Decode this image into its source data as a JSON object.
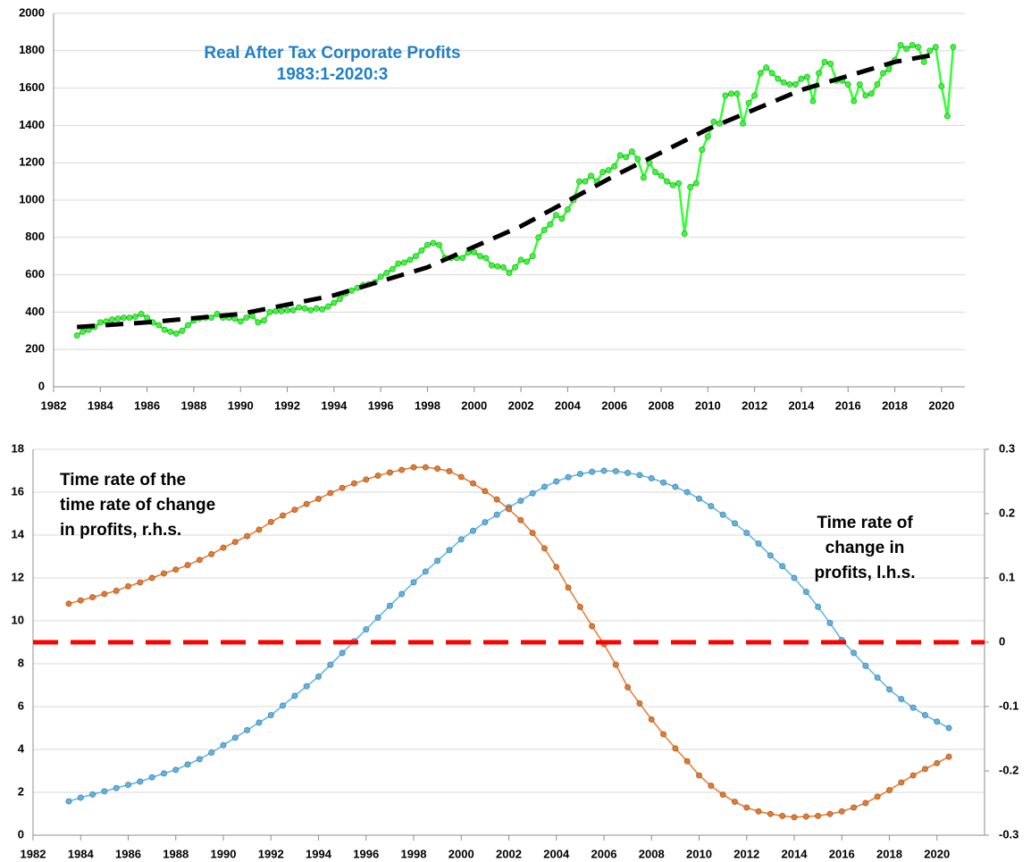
{
  "chart_data": [
    {
      "type": "line",
      "title": [
        "Real After Tax Corporate Profits",
        "1983:1-2020:3"
      ],
      "title_color": "#1f7fc8",
      "xlim": [
        1982,
        2021
      ],
      "xticks": [
        1982,
        1984,
        1986,
        1988,
        1990,
        1992,
        1994,
        1996,
        1998,
        2000,
        2002,
        2004,
        2006,
        2008,
        2010,
        2012,
        2014,
        2016,
        2018,
        2020
      ],
      "ylim": [
        0,
        2000
      ],
      "yticks": [
        0,
        200,
        400,
        600,
        800,
        1000,
        1200,
        1400,
        1600,
        1800,
        2000
      ],
      "grid": true,
      "series": [
        {
          "color": "#33ff33",
          "marker": true,
          "x": [
            1983,
            1983.25,
            1983.5,
            1983.75,
            1984,
            1984.25,
            1984.5,
            1984.75,
            1985,
            1985.25,
            1985.5,
            1985.75,
            1986,
            1986.25,
            1986.5,
            1986.75,
            1987,
            1987.25,
            1987.5,
            1987.75,
            1988,
            1988.25,
            1988.5,
            1988.75,
            1989,
            1989.25,
            1989.5,
            1989.75,
            1990,
            1990.25,
            1990.5,
            1990.75,
            1991,
            1991.25,
            1991.5,
            1991.75,
            1992,
            1992.25,
            1992.5,
            1992.75,
            1993,
            1993.25,
            1993.5,
            1993.75,
            1994,
            1994.25,
            1994.5,
            1994.75,
            1995,
            1995.25,
            1995.5,
            1995.75,
            1996,
            1996.25,
            1996.5,
            1996.75,
            1997,
            1997.25,
            1997.5,
            1997.75,
            1998,
            1998.25,
            1998.5,
            1998.75,
            1999,
            1999.25,
            1999.5,
            1999.75,
            2000,
            2000.25,
            2000.5,
            2000.75,
            2001,
            2001.25,
            2001.5,
            2001.75,
            2002,
            2002.25,
            2002.5,
            2002.75,
            2003,
            2003.25,
            2003.5,
            2003.75,
            2004,
            2004.25,
            2004.5,
            2004.75,
            2005,
            2005.25,
            2005.5,
            2005.75,
            2006,
            2006.25,
            2006.5,
            2006.75,
            2007,
            2007.25,
            2007.5,
            2007.75,
            2008,
            2008.25,
            2008.5,
            2008.75,
            2009,
            2009.25,
            2009.5,
            2009.75,
            2010,
            2010.25,
            2010.5,
            2010.75,
            2011,
            2011.25,
            2011.5,
            2011.75,
            2012,
            2012.25,
            2012.5,
            2012.75,
            2013,
            2013.25,
            2013.5,
            2013.75,
            2014,
            2014.25,
            2014.5,
            2014.75,
            2015,
            2015.25,
            2015.5,
            2015.75,
            2016,
            2016.25,
            2016.5,
            2016.75,
            2017,
            2017.25,
            2017.5,
            2017.75,
            2018,
            2018.25,
            2018.5,
            2018.75,
            2019,
            2019.25,
            2019.5,
            2019.75,
            2020,
            2020.25,
            2020.5
          ],
          "values": [
            275,
            295,
            305,
            320,
            345,
            350,
            360,
            365,
            370,
            370,
            375,
            390,
            370,
            345,
            330,
            305,
            295,
            285,
            300,
            330,
            355,
            365,
            370,
            370,
            390,
            370,
            370,
            365,
            350,
            370,
            380,
            345,
            355,
            400,
            405,
            405,
            410,
            410,
            425,
            420,
            410,
            420,
            415,
            430,
            450,
            470,
            500,
            515,
            530,
            545,
            550,
            560,
            590,
            610,
            630,
            660,
            665,
            680,
            700,
            730,
            760,
            770,
            760,
            690,
            690,
            690,
            690,
            720,
            720,
            700,
            690,
            650,
            645,
            640,
            610,
            640,
            680,
            670,
            700,
            800,
            840,
            870,
            920,
            900,
            950,
            1000,
            1100,
            1100,
            1130,
            1100,
            1150,
            1160,
            1180,
            1240,
            1230,
            1260,
            1220,
            1120,
            1200,
            1150,
            1130,
            1100,
            1080,
            1090,
            820,
            1070,
            1090,
            1270,
            1340,
            1420,
            1410,
            1560,
            1570,
            1570,
            1410,
            1520,
            1560,
            1680,
            1710,
            1680,
            1650,
            1630,
            1620,
            1620,
            1650,
            1660,
            1530,
            1680,
            1740,
            1730,
            1640,
            1640,
            1620,
            1530,
            1620,
            1560,
            1570,
            1620,
            1680,
            1700,
            1750,
            1830,
            1810,
            1830,
            1820,
            1740,
            1800,
            1820,
            1610,
            1450,
            1820
          ]
        },
        {
          "color": "#000000",
          "marker": false,
          "style": "dashed",
          "x": [
            1983,
            1986,
            1990,
            1994,
            1998,
            2002,
            2006,
            2010,
            2014,
            2018,
            2019.75
          ],
          "values": [
            320,
            345,
            390,
            490,
            640,
            860,
            1130,
            1380,
            1590,
            1740,
            1780
          ]
        }
      ]
    },
    {
      "type": "line",
      "annotations": [
        [
          "Time rate of the",
          "time rate of change",
          "in  profits, r.h.s."
        ],
        [
          "Time rate of",
          "change in",
          "profits, l.h.s."
        ]
      ],
      "xlim": [
        1982,
        2022
      ],
      "xticks": [
        1982,
        1984,
        1986,
        1988,
        1990,
        1992,
        1994,
        1996,
        1998,
        2000,
        2002,
        2004,
        2006,
        2008,
        2010,
        2012,
        2014,
        2016,
        2018,
        2020
      ],
      "ylim": [
        0,
        18
      ],
      "yticks": [
        0,
        2,
        4,
        6,
        8,
        10,
        12,
        14,
        16,
        18
      ],
      "y2lim": [
        -0.3,
        0.3
      ],
      "y2ticks": [
        -0.3,
        -0.2,
        -0.1,
        0,
        0.1,
        0.2,
        0.3
      ],
      "grid": true,
      "series": [
        {
          "color": "#5ab4e8",
          "marker": true,
          "x": [
            1983.5,
            1984,
            1984.5,
            1985,
            1985.5,
            1986,
            1986.5,
            1987,
            1987.5,
            1988,
            1988.5,
            1989,
            1989.5,
            1990,
            1990.5,
            1991,
            1991.5,
            1992,
            1992.5,
            1993,
            1993.5,
            1994,
            1994.5,
            1995,
            1995.5,
            1996,
            1996.5,
            1997,
            1997.5,
            1998,
            1998.5,
            1999,
            1999.5,
            2000,
            2000.5,
            2001,
            2001.5,
            2002,
            2002.5,
            2003,
            2003.5,
            2004,
            2004.5,
            2005,
            2005.5,
            2006,
            2006.5,
            2007,
            2007.5,
            2008,
            2008.5,
            2009,
            2009.5,
            2010,
            2010.5,
            2011,
            2011.5,
            2012,
            2012.5,
            2013,
            2013.5,
            2014,
            2014.5,
            2015,
            2015.5,
            2016,
            2016.5,
            2017,
            2017.5,
            2018,
            2018.5,
            2019,
            2019.5,
            2020,
            2020.5
          ],
          "values": [
            1.58,
            1.75,
            1.9,
            2.05,
            2.2,
            2.35,
            2.5,
            2.7,
            2.88,
            3.05,
            3.3,
            3.55,
            3.85,
            4.2,
            4.55,
            4.9,
            5.25,
            5.6,
            6.05,
            6.5,
            6.95,
            7.4,
            7.95,
            8.5,
            9.05,
            9.6,
            10.15,
            10.7,
            11.25,
            11.8,
            12.3,
            12.8,
            13.3,
            13.8,
            14.2,
            14.6,
            14.95,
            15.3,
            15.6,
            15.95,
            16.25,
            16.5,
            16.7,
            16.85,
            16.95,
            17.0,
            16.98,
            16.9,
            16.8,
            16.65,
            16.45,
            16.25,
            16.0,
            15.7,
            15.35,
            14.95,
            14.55,
            14.1,
            13.6,
            13.05,
            12.55,
            12.0,
            11.35,
            10.65,
            9.9,
            9.1,
            8.5,
            7.9,
            7.35,
            6.8,
            6.35,
            5.95,
            5.6,
            5.3,
            5.0
          ]
        },
        {
          "color": "#e8782a",
          "marker": true,
          "axis": "y2",
          "x": [
            1983.5,
            1984,
            1984.5,
            1985,
            1985.5,
            1986,
            1986.5,
            1987,
            1987.5,
            1988,
            1988.5,
            1989,
            1989.5,
            1990,
            1990.5,
            1991,
            1991.5,
            1992,
            1992.5,
            1993,
            1993.5,
            1994,
            1994.5,
            1995,
            1995.5,
            1996,
            1996.5,
            1997,
            1997.5,
            1998,
            1998.5,
            1999,
            1999.5,
            2000,
            2000.5,
            2001,
            2001.5,
            2002,
            2002.5,
            2003,
            2003.5,
            2004,
            2004.5,
            2005,
            2005.5,
            2006,
            2006.5,
            2007,
            2007.5,
            2008,
            2008.5,
            2009,
            2009.5,
            2010,
            2010.5,
            2011,
            2011.5,
            2012,
            2012.5,
            2013,
            2013.5,
            2014,
            2014.5,
            2015,
            2015.5,
            2016,
            2016.5,
            2017,
            2017.5,
            2018,
            2018.5,
            2019,
            2019.5,
            2020,
            2020.5
          ],
          "values": [
            0.06,
            0.065,
            0.07,
            0.075,
            0.08,
            0.087,
            0.093,
            0.1,
            0.107,
            0.113,
            0.12,
            0.128,
            0.137,
            0.147,
            0.156,
            0.165,
            0.175,
            0.187,
            0.197,
            0.206,
            0.215,
            0.223,
            0.232,
            0.24,
            0.247,
            0.253,
            0.259,
            0.264,
            0.268,
            0.272,
            0.272,
            0.27,
            0.266,
            0.257,
            0.247,
            0.235,
            0.222,
            0.207,
            0.19,
            0.17,
            0.146,
            0.117,
            0.085,
            0.055,
            0.025,
            -0.003,
            -0.035,
            -0.07,
            -0.095,
            -0.12,
            -0.143,
            -0.165,
            -0.185,
            -0.207,
            -0.223,
            -0.237,
            -0.248,
            -0.257,
            -0.263,
            -0.267,
            -0.27,
            -0.272,
            -0.271,
            -0.27,
            -0.267,
            -0.263,
            -0.257,
            -0.25,
            -0.24,
            -0.23,
            -0.218,
            -0.207,
            -0.197,
            -0.188,
            -0.178
          ]
        },
        {
          "color": "#ff0000",
          "marker": false,
          "style": "dashed",
          "axis": "y2",
          "x": [
            1982,
            2022
          ],
          "values": [
            0,
            0
          ]
        }
      ]
    }
  ]
}
